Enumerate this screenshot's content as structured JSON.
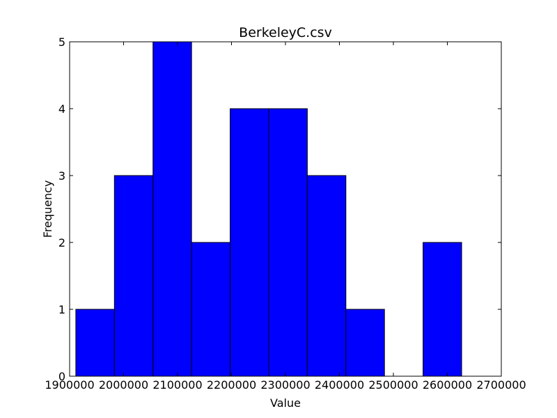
{
  "chart_data": {
    "type": "bar",
    "title": "BerkeleyC.csv",
    "xlabel": "Value",
    "ylabel": "Frequency",
    "xlim": [
      1900000,
      2700000
    ],
    "ylim": [
      0,
      5
    ],
    "x_ticks": [
      1900000,
      2000000,
      2100000,
      2200000,
      2300000,
      2400000,
      2500000,
      2600000,
      2700000
    ],
    "x_tick_labels": [
      "1900000",
      "2000000",
      "2100000",
      "2200000",
      "2300000",
      "2400000",
      "2500000",
      "2600000",
      "2700000"
    ],
    "y_ticks": [
      0,
      1,
      2,
      3,
      4,
      5
    ],
    "y_tick_labels": [
      "0",
      "1",
      "2",
      "3",
      "4",
      "5"
    ],
    "bins": [
      {
        "start": 1911500,
        "end": 1983000,
        "count": 1
      },
      {
        "start": 1983000,
        "end": 2054500,
        "count": 3
      },
      {
        "start": 2054500,
        "end": 2126000,
        "count": 5
      },
      {
        "start": 2126000,
        "end": 2197500,
        "count": 2
      },
      {
        "start": 2197500,
        "end": 2269000,
        "count": 4
      },
      {
        "start": 2269000,
        "end": 2340500,
        "count": 4
      },
      {
        "start": 2340500,
        "end": 2412000,
        "count": 3
      },
      {
        "start": 2412000,
        "end": 2483500,
        "count": 1
      },
      {
        "start": 2483500,
        "end": 2555000,
        "count": 0
      },
      {
        "start": 2555000,
        "end": 2626500,
        "count": 2
      }
    ],
    "bar_color": "#0000ff",
    "edge_color": "#000000",
    "grid": false
  }
}
